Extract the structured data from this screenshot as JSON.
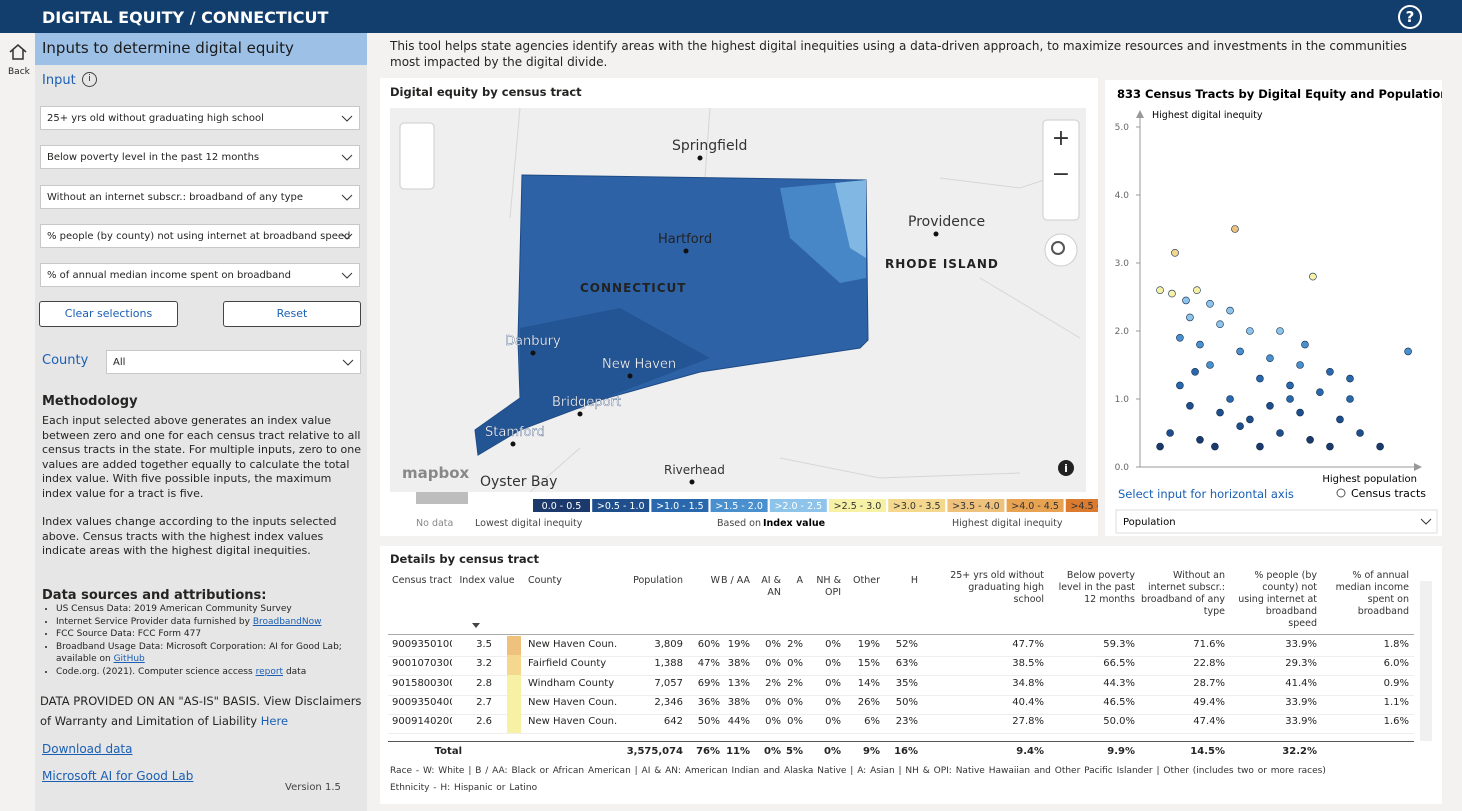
{
  "header": {
    "title": "DIGITAL EQUITY / CONNECTICUT",
    "help": "?"
  },
  "nav": {
    "back": "Back"
  },
  "sidebar": {
    "title": "Inputs to determine digital equity",
    "input_label": "Input",
    "input_info": "i",
    "inputs": [
      "25+ yrs old without graduating high school",
      "Below poverty level in the past 12 months",
      "Without an internet subscr.: broadband of any type",
      "% people (by county) not using internet at broadband speed",
      "% of annual median income spent on broadband"
    ],
    "clear": "Clear selections",
    "reset": "Reset",
    "county_label": "County",
    "county_value": "All",
    "methodology_title": "Methodology",
    "methodology": [
      "Each input selected above generates an index value between zero and one for each census tract relative to all census tracts in the state. For multiple inputs, zero to one values are added together equally to calculate the total index value. With five possible inputs, the maximum index value for a tract is five.",
      "Index values change according to the inputs selected above. Census tracts with the highest index values indicate areas with the highest digital inequities."
    ],
    "sources_title": "Data sources and attributions:",
    "sources": [
      {
        "text": "US Census Data: 2019 American Community Survey"
      },
      {
        "text": "Internet Service Provider data furnished by",
        "link": "BroadbandNow"
      },
      {
        "text": "FCC Source Data: FCC Form 477"
      },
      {
        "text": "Broadband Usage Data: Microsoft Corporation: AI for Good Lab; available on",
        "link": "GitHub"
      },
      {
        "text": "Code.org. (2021). Computer science access",
        "link": "report",
        "rest": "data"
      }
    ],
    "disclaimer": "DATA PROVIDED ON AN \"AS-IS\" BASIS. View Disclaimers of Warranty and Limitation of Liability",
    "disclaimer_link": "Here",
    "download": "Download data",
    "lab": "Microsoft AI for Good Lab",
    "version": "Version 1.5"
  },
  "intro": "This tool helps state agencies identify areas with the highest digital inequities using a data-driven approach, to maximize resources and investments in the communities most impacted by the digital divide.",
  "map": {
    "title": "Digital equity by census tract",
    "places": [
      "Springfield",
      "Providence",
      "Hartford",
      "CONNECTICUT",
      "RHODE ISLAND",
      "Danbury",
      "New Haven",
      "Bridgeport",
      "Stamford",
      "Oyster Bay",
      "Riverhead"
    ],
    "attribution": "mapbox",
    "info": "i",
    "controls": [
      "+",
      "−"
    ],
    "legend": {
      "no_data": "No data",
      "low": "Lowest digital inequity",
      "based": "Based on",
      "based_bold": "Index value",
      "high": "Highest digital inequity",
      "bins": [
        {
          "label": "0.0 - 0.5",
          "color": "#1b3a6b"
        },
        {
          "label": ">0.5 - 1.0",
          "color": "#1f4e8c"
        },
        {
          "label": ">1.0 - 1.5",
          "color": "#2a68ad"
        },
        {
          "label": ">1.5 - 2.0",
          "color": "#4a90cf"
        },
        {
          "label": ">2.0 - 2.5",
          "color": "#8ec4ea"
        },
        {
          "label": ">2.5 - 3.0",
          "color": "#f7f1a6"
        },
        {
          "label": ">3.0 - 3.5",
          "color": "#f3d88e"
        },
        {
          "label": ">3.5 - 4.0",
          "color": "#eec27c"
        },
        {
          "label": ">4.0 - 4.5",
          "color": "#e8a352"
        },
        {
          "label": ">4.5 - 5.0",
          "color": "#db7b30"
        }
      ]
    }
  },
  "chart_data": {
    "type": "scatter",
    "title": "833 Census Tracts by Digital Equity and Population",
    "y_label": "Highest digital inequity",
    "x_label": "Highest population",
    "ylim": [
      0,
      5
    ],
    "yticks": [
      {
        "value": 0,
        "label": "0.0"
      },
      {
        "value": 1,
        "label": "1.0"
      },
      {
        "value": 2,
        "label": "2.0"
      },
      {
        "value": 3,
        "label": "3.0"
      },
      {
        "value": 4,
        "label": "4.0"
      },
      {
        "value": 5,
        "label": "5.0"
      }
    ],
    "xlim": [
      0,
      12000
    ],
    "series": [
      {
        "name": "Census tracts",
        "x": [
          860,
          1500,
          4070,
          7410,
          1370,
          1970,
          2440,
          3000,
          2140,
          3430,
          4710,
          1710,
          2570,
          4290,
          5570,
          6860,
          8140,
          3000,
          5140,
          6430,
          7710,
          9000,
          1710,
          3860,
          5570,
          6860,
          8570,
          9430,
          1290,
          2570,
          4290,
          6000,
          7290,
          10290,
          3430,
          4710,
          2140,
          860,
          8140,
          11490,
          7070,
          6000,
          3860,
          2360,
          3210,
          5140,
          6430,
          9000
        ],
        "values": [
          2.6,
          3.15,
          3.5,
          2.8,
          2.55,
          2.45,
          2.6,
          2.4,
          2.2,
          2.1,
          2.0,
          1.9,
          1.8,
          1.7,
          1.6,
          1.5,
          1.4,
          1.5,
          1.3,
          1.2,
          1.1,
          1.0,
          1.2,
          1.0,
          0.9,
          0.8,
          0.7,
          0.5,
          0.5,
          0.4,
          0.6,
          0.5,
          0.4,
          0.3,
          0.8,
          0.7,
          0.9,
          0.3,
          0.3,
          1.7,
          1.8,
          2.0,
          2.3,
          1.4,
          0.3,
          0.3,
          1.0,
          1.3
        ]
      }
    ],
    "axis_select": "Select input for horizontal axis",
    "axis_value": "Population"
  },
  "table": {
    "title": "Details by census tract",
    "headers": [
      "Census tract",
      "Index value",
      "County",
      "Population",
      "W",
      "B / AA",
      "AI & AN",
      "A",
      "NH & OPI",
      "Other",
      "H",
      "25+ yrs old without graduating high school",
      "Below poverty level in the past 12 months",
      "Without an internet subscr.: broadband of any type",
      "% people (by county) not using internet at broadband speed",
      "% of annual median income spent on broadband"
    ],
    "rows": [
      [
        "9009350100",
        3.5,
        "New Haven Coun...",
        "3,809",
        "60%",
        "19%",
        "0%",
        "2%",
        "0%",
        "19%",
        "52%",
        "47.7%",
        "59.3%",
        "71.6%",
        "33.9%",
        "1.8%"
      ],
      [
        "9001070300",
        3.2,
        "Fairfield County",
        "1,388",
        "47%",
        "38%",
        "0%",
        "0%",
        "0%",
        "15%",
        "63%",
        "38.5%",
        "66.5%",
        "22.8%",
        "29.3%",
        "6.0%"
      ],
      [
        "9015800300",
        2.8,
        "Windham County",
        "7,057",
        "69%",
        "13%",
        "2%",
        "2%",
        "0%",
        "14%",
        "35%",
        "34.8%",
        "44.3%",
        "28.7%",
        "41.4%",
        "0.9%"
      ],
      [
        "9009350400",
        2.7,
        "New Haven Coun...",
        "2,346",
        "36%",
        "38%",
        "0%",
        "0%",
        "0%",
        "26%",
        "50%",
        "40.4%",
        "46.5%",
        "49.4%",
        "33.9%",
        "1.1%"
      ],
      [
        "9009140200",
        2.6,
        "New Haven Coun...",
        "642",
        "50%",
        "44%",
        "0%",
        "0%",
        "0%",
        "6%",
        "23%",
        "27.8%",
        "50.0%",
        "47.4%",
        "33.9%",
        "1.6%"
      ]
    ],
    "total": {
      "label": "Total",
      "values": [
        "3,575,074",
        "76%",
        "11%",
        "0%",
        "5%",
        "0%",
        "9%",
        "16%",
        "9.4%",
        "9.9%",
        "14.5%",
        "32.2%"
      ]
    },
    "notes": [
      "Race - W: White | B / AA: Black or African American | AI & AN: American Indian and Alaska Native | A: Asian | NH & OPI: Native Hawaiian and Other Pacific Islander | Other (includes two or more races)",
      "Ethnicity - H: Hispanic or Latino"
    ]
  }
}
